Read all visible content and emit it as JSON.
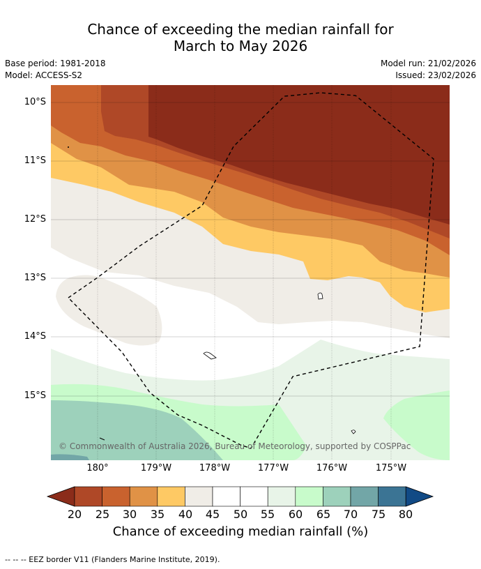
{
  "title_line1": "Chance of exceeding the median rainfall for",
  "title_line2": "March to May 2026",
  "base_period": "Base period: 1981-2018",
  "model": "Model: ACCESS-S2",
  "model_run": "Model run: 21/02/2026",
  "issued": "Issued: 23/02/2026",
  "lat_labels": [
    "10°S",
    "11°S",
    "12°S",
    "13°S",
    "14°S",
    "15°S"
  ],
  "lon_labels": [
    "180°",
    "179°W",
    "178°W",
    "177°W",
    "176°W",
    "175°W"
  ],
  "copyright": "© Commonwealth of Australia 2026, Bureau of Meteorology, supported by COSPPac",
  "colorbar": {
    "ticks": [
      "20",
      "25",
      "30",
      "35",
      "40",
      "45",
      "50",
      "55",
      "60",
      "65",
      "70",
      "75",
      "80"
    ],
    "colors": [
      "#af4827",
      "#c9622e",
      "#e09246",
      "#fec964",
      "#f0ede7",
      "#ffffff",
      "#ffffff",
      "#e8f4e8",
      "#c8fbcb",
      "#9dd1bb",
      "#72a6a7",
      "#3b7494"
    ],
    "low_extend_color": "#8b2c1a",
    "high_extend_color": "#114a85",
    "title": "Chance of exceeding median rainfall (%)"
  },
  "footnote": "--  --  -- EEZ border V11 (Flanders Marine Institute, 2019)."
}
